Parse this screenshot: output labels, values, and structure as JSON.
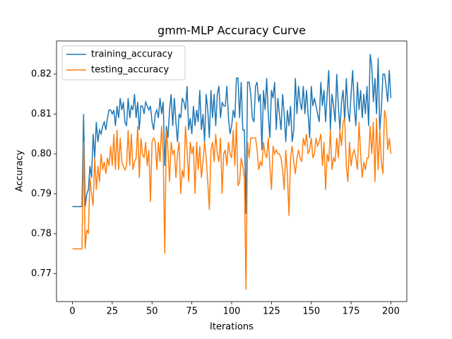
{
  "chart_data": {
    "type": "line",
    "title": "gmm-MLP Accuracy Curve",
    "x_label": "Iterations",
    "y_label": "Accuracy",
    "x": [
      0,
      1,
      2,
      3,
      4,
      5,
      6,
      7,
      8,
      9,
      10,
      11,
      12,
      13,
      14,
      15,
      16,
      17,
      18,
      19,
      20,
      21,
      22,
      23,
      24,
      25,
      26,
      27,
      28,
      29,
      30,
      31,
      32,
      33,
      34,
      35,
      36,
      37,
      38,
      39,
      40,
      41,
      42,
      43,
      44,
      45,
      46,
      47,
      48,
      49,
      50,
      51,
      52,
      53,
      54,
      55,
      56,
      57,
      58,
      59,
      60,
      61,
      62,
      63,
      64,
      65,
      66,
      67,
      68,
      69,
      70,
      71,
      72,
      73,
      74,
      75,
      76,
      77,
      78,
      79,
      80,
      81,
      82,
      83,
      84,
      85,
      86,
      87,
      88,
      89,
      90,
      91,
      92,
      93,
      94,
      95,
      96,
      97,
      98,
      99,
      100,
      101,
      102,
      103,
      104,
      105,
      106,
      107,
      108,
      109,
      110,
      111,
      112,
      113,
      114,
      115,
      116,
      117,
      118,
      119,
      120,
      121,
      122,
      123,
      124,
      125,
      126,
      127,
      128,
      129,
      130,
      131,
      132,
      133,
      134,
      135,
      136,
      137,
      138,
      139,
      140,
      141,
      142,
      143,
      144,
      145,
      146,
      147,
      148,
      149,
      150,
      151,
      152,
      153,
      154,
      155,
      156,
      157,
      158,
      159,
      160,
      161,
      162,
      163,
      164,
      165,
      166,
      167,
      168,
      169,
      170,
      171,
      172,
      173,
      174,
      175,
      176,
      177,
      178,
      179,
      180,
      181,
      182,
      183,
      184,
      185,
      186,
      187,
      188,
      189,
      190,
      191,
      192,
      193,
      194,
      195,
      196,
      197,
      198,
      199,
      200
    ],
    "series": [
      {
        "name": "training_accuracy",
        "color": "#1f77b4",
        "values": [
          0.7868,
          0.7868,
          0.7868,
          0.7868,
          0.7868,
          0.7868,
          0.7868,
          0.81,
          0.7868,
          0.79,
          0.791,
          0.797,
          0.794,
          0.805,
          0.799,
          0.808,
          0.803,
          0.806,
          0.805,
          0.807,
          0.808,
          0.806,
          0.809,
          0.811,
          0.811,
          0.81,
          0.811,
          0.807,
          0.812,
          0.809,
          0.814,
          0.811,
          0.813,
          0.808,
          0.807,
          0.814,
          0.809,
          0.812,
          0.811,
          0.815,
          0.809,
          0.813,
          0.806,
          0.812,
          0.812,
          0.81,
          0.813,
          0.812,
          0.811,
          0.812,
          0.808,
          0.806,
          0.81,
          0.811,
          0.809,
          0.814,
          0.81,
          0.813,
          0.797,
          0.807,
          0.804,
          0.811,
          0.815,
          0.807,
          0.814,
          0.808,
          0.803,
          0.81,
          0.809,
          0.814,
          0.813,
          0.811,
          0.817,
          0.806,
          0.809,
          0.805,
          0.812,
          0.807,
          0.811,
          0.808,
          0.816,
          0.806,
          0.81,
          0.803,
          0.815,
          0.811,
          0.804,
          0.816,
          0.809,
          0.815,
          0.807,
          0.815,
          0.817,
          0.809,
          0.813,
          0.812,
          0.812,
          0.817,
          0.809,
          0.805,
          0.807,
          0.811,
          0.809,
          0.819,
          0.819,
          0.809,
          0.818,
          0.806,
          0.806,
          0.785,
          0.818,
          0.818,
          0.815,
          0.809,
          0.808,
          0.817,
          0.818,
          0.813,
          0.815,
          0.801,
          0.816,
          0.811,
          0.819,
          0.81,
          0.804,
          0.816,
          0.814,
          0.818,
          0.806,
          0.814,
          0.81,
          0.806,
          0.815,
          0.81,
          0.803,
          0.811,
          0.807,
          0.812,
          0.803,
          0.806,
          0.819,
          0.81,
          0.817,
          0.813,
          0.811,
          0.817,
          0.81,
          0.816,
          0.81,
          0.804,
          0.817,
          0.812,
          0.814,
          0.812,
          0.81,
          0.808,
          0.818,
          0.812,
          0.816,
          0.808,
          0.815,
          0.821,
          0.806,
          0.815,
          0.812,
          0.808,
          0.82,
          0.812,
          0.806,
          0.813,
          0.816,
          0.808,
          0.819,
          0.811,
          0.808,
          0.815,
          0.821,
          0.812,
          0.807,
          0.818,
          0.811,
          0.816,
          0.809,
          0.815,
          0.81,
          0.817,
          0.807,
          0.825,
          0.822,
          0.813,
          0.819,
          0.81,
          0.824,
          0.806,
          0.811,
          0.82,
          0.82,
          0.817,
          0.813,
          0.821,
          0.814
        ]
      },
      {
        "name": "testing_accuracy",
        "color": "#ff7f0e",
        "values": [
          0.7762,
          0.7762,
          0.7762,
          0.7762,
          0.7762,
          0.7762,
          0.7762,
          0.803,
          0.7762,
          0.781,
          0.78,
          0.794,
          0.79,
          0.787,
          0.799,
          0.791,
          0.797,
          0.793,
          0.8,
          0.796,
          0.798,
          0.795,
          0.799,
          0.797,
          0.802,
          0.797,
          0.805,
          0.796,
          0.806,
          0.796,
          0.804,
          0.798,
          0.797,
          0.796,
          0.797,
          0.806,
          0.797,
          0.805,
          0.796,
          0.798,
          0.799,
          0.807,
          0.794,
          0.804,
          0.8,
          0.799,
          0.803,
          0.797,
          0.801,
          0.788,
          0.803,
          0.804,
          0.803,
          0.796,
          0.803,
          0.798,
          0.807,
          0.8,
          0.775,
          0.806,
          0.801,
          0.793,
          0.803,
          0.8,
          0.801,
          0.794,
          0.8,
          0.803,
          0.79,
          0.796,
          0.794,
          0.807,
          0.801,
          0.793,
          0.803,
          0.8,
          0.802,
          0.79,
          0.803,
          0.796,
          0.802,
          0.794,
          0.798,
          0.803,
          0.799,
          0.793,
          0.786,
          0.801,
          0.803,
          0.798,
          0.805,
          0.8,
          0.798,
          0.804,
          0.79,
          0.8,
          0.801,
          0.797,
          0.803,
          0.8,
          0.799,
          0.806,
          0.797,
          0.808,
          0.792,
          0.793,
          0.799,
          0.797,
          0.794,
          0.766,
          0.803,
          0.799,
          0.804,
          0.804,
          0.804,
          0.804,
          0.801,
          0.796,
          0.798,
          0.797,
          0.803,
          0.8,
          0.799,
          0.804,
          0.797,
          0.791,
          0.802,
          0.8,
          0.801,
          0.8,
          0.8,
          0.799,
          0.796,
          0.791,
          0.801,
          0.795,
          0.7845,
          0.799,
          0.802,
          0.798,
          0.795,
          0.799,
          0.801,
          0.799,
          0.798,
          0.804,
          0.802,
          0.805,
          0.8,
          0.801,
          0.804,
          0.799,
          0.8,
          0.804,
          0.802,
          0.803,
          0.805,
          0.797,
          0.803,
          0.791,
          0.8,
          0.798,
          0.806,
          0.796,
          0.799,
          0.798,
          0.804,
          0.799,
          0.806,
          0.802,
          0.808,
          0.809,
          0.797,
          0.793,
          0.803,
          0.797,
          0.8,
          0.801,
          0.799,
          0.796,
          0.808,
          0.8,
          0.794,
          0.798,
          0.796,
          0.799,
          0.799,
          0.807,
          0.8,
          0.808,
          0.793,
          0.809,
          0.796,
          0.806,
          0.798,
          0.795,
          0.811,
          0.809,
          0.801,
          0.804,
          0.8
        ]
      }
    ],
    "xlim": [
      -10,
      210
    ],
    "xticks": [
      0,
      25,
      50,
      75,
      100,
      125,
      150,
      175,
      200
    ],
    "ylim": [
      0.763,
      0.8283
    ],
    "yticks": [
      0.77,
      0.78,
      0.79,
      {
        "value": 0.8,
        "label": "0.80"
      },
      0.81,
      0.82
    ],
    "legend": "upper left",
    "grid": false
  }
}
